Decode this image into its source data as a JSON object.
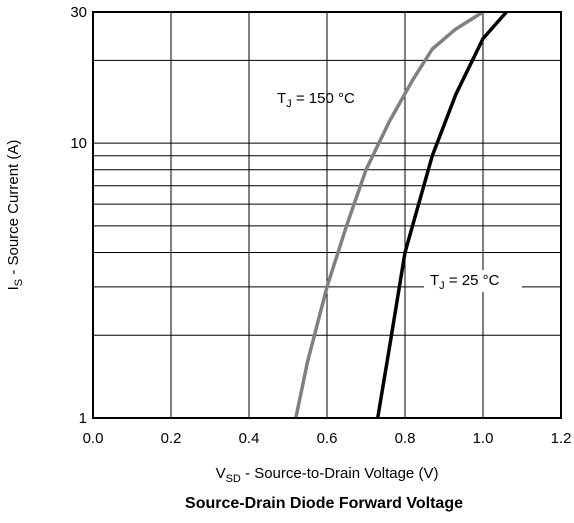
{
  "chart_data": {
    "type": "line",
    "title": "Source-Drain Diode Forward Voltage",
    "xlabel": {
      "main": "V",
      "sub": "SD",
      "rest": " - Source-to-Drain Voltage (V)"
    },
    "ylabel": {
      "main": "I",
      "sub": "S",
      "rest": " - Source Current (A)"
    },
    "xlim": [
      0.0,
      1.2
    ],
    "ylim": [
      1,
      30
    ],
    "yscale": "log",
    "grid": true,
    "x_ticks": [
      0.0,
      0.2,
      0.4,
      0.6,
      0.8,
      1.0,
      1.2
    ],
    "x_tick_labels": [
      "0.0",
      "0.2",
      "0.4",
      "0.6",
      "0.8",
      "1.0",
      "1.2"
    ],
    "y_ticks": [
      1,
      10,
      30
    ],
    "y_tick_labels": [
      "1",
      "10",
      "30"
    ],
    "series": [
      {
        "label_main": "T",
        "label_sub": "J",
        "label_rest": " = 150 °C",
        "color": "#808080",
        "points": [
          [
            0.52,
            1
          ],
          [
            0.55,
            1.6
          ],
          [
            0.6,
            3
          ],
          [
            0.65,
            5
          ],
          [
            0.7,
            8
          ],
          [
            0.76,
            12
          ],
          [
            0.82,
            17
          ],
          [
            0.87,
            22
          ],
          [
            0.93,
            26
          ],
          [
            1.0,
            30
          ]
        ]
      },
      {
        "label_main": "T",
        "label_sub": "J",
        "label_rest": " = 25 °C",
        "color": "#000000",
        "points": [
          [
            0.73,
            1
          ],
          [
            0.76,
            1.8
          ],
          [
            0.8,
            4
          ],
          [
            0.87,
            9
          ],
          [
            0.93,
            15
          ],
          [
            1.0,
            24
          ],
          [
            1.06,
            30
          ]
        ]
      }
    ]
  }
}
